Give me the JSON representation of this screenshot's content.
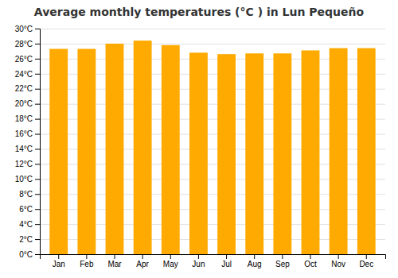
{
  "chart_data": {
    "type": "bar",
    "title": "Average monthly temperatures (°C ) in Lun Pequeño",
    "categories": [
      "Jan",
      "Feb",
      "Mar",
      "Apr",
      "May",
      "Jun",
      "Jul",
      "Aug",
      "Sep",
      "Oct",
      "Nov",
      "Dec"
    ],
    "values": [
      27.3,
      27.3,
      28.0,
      28.4,
      27.8,
      26.8,
      26.6,
      26.7,
      26.7,
      27.1,
      27.4,
      27.4
    ],
    "color": "#FFAA00",
    "ylim": [
      0,
      30
    ],
    "yticks": [
      {
        "value": 0,
        "label": "0°C"
      },
      {
        "value": 2,
        "label": "2°C"
      },
      {
        "value": 4,
        "label": "4°C"
      },
      {
        "value": 6,
        "label": "6°C"
      },
      {
        "value": 8,
        "label": "8°C"
      },
      {
        "value": 10,
        "label": "10°C"
      },
      {
        "value": 12,
        "label": "12°C"
      },
      {
        "value": 14,
        "label": "14°C"
      },
      {
        "value": 16,
        "label": "16°C"
      },
      {
        "value": 18,
        "label": "18°C"
      },
      {
        "value": 20,
        "label": "20°C"
      },
      {
        "value": 22,
        "label": "22°C"
      },
      {
        "value": 24,
        "label": "24°C"
      },
      {
        "value": 26,
        "label": "26°C"
      },
      {
        "value": 28,
        "label": "28°C"
      },
      {
        "value": 30,
        "label": "30°C"
      }
    ],
    "grid": true
  }
}
